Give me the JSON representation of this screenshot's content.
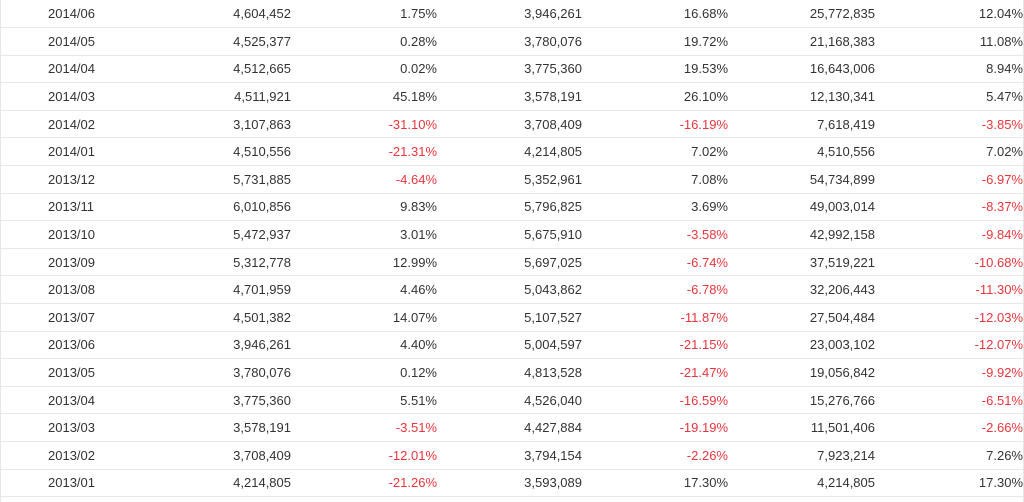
{
  "colors": {
    "negative": "#e8363c",
    "text": "#333333",
    "divider": "#e8e8e8"
  },
  "rows": [
    {
      "date": "2014/06",
      "v1": "4,604,452",
      "p1": "1.75%",
      "v2": "3,946,261",
      "p2": "16.68%",
      "v3": "25,772,835",
      "p3": "12.04%"
    },
    {
      "date": "2014/05",
      "v1": "4,525,377",
      "p1": "0.28%",
      "v2": "3,780,076",
      "p2": "19.72%",
      "v3": "21,168,383",
      "p3": "11.08%"
    },
    {
      "date": "2014/04",
      "v1": "4,512,665",
      "p1": "0.02%",
      "v2": "3,775,360",
      "p2": "19.53%",
      "v3": "16,643,006",
      "p3": "8.94%"
    },
    {
      "date": "2014/03",
      "v1": "4,511,921",
      "p1": "45.18%",
      "v2": "3,578,191",
      "p2": "26.10%",
      "v3": "12,130,341",
      "p3": "5.47%"
    },
    {
      "date": "2014/02",
      "v1": "3,107,863",
      "p1": "-31.10%",
      "v2": "3,708,409",
      "p2": "-16.19%",
      "v3": "7,618,419",
      "p3": "-3.85%"
    },
    {
      "date": "2014/01",
      "v1": "4,510,556",
      "p1": "-21.31%",
      "v2": "4,214,805",
      "p2": "7.02%",
      "v3": "4,510,556",
      "p3": "7.02%"
    },
    {
      "date": "2013/12",
      "v1": "5,731,885",
      "p1": "-4.64%",
      "v2": "5,352,961",
      "p2": "7.08%",
      "v3": "54,734,899",
      "p3": "-6.97%"
    },
    {
      "date": "2013/11",
      "v1": "6,010,856",
      "p1": "9.83%",
      "v2": "5,796,825",
      "p2": "3.69%",
      "v3": "49,003,014",
      "p3": "-8.37%"
    },
    {
      "date": "2013/10",
      "v1": "5,472,937",
      "p1": "3.01%",
      "v2": "5,675,910",
      "p2": "-3.58%",
      "v3": "42,992,158",
      "p3": "-9.84%"
    },
    {
      "date": "2013/09",
      "v1": "5,312,778",
      "p1": "12.99%",
      "v2": "5,697,025",
      "p2": "-6.74%",
      "v3": "37,519,221",
      "p3": "-10.68%"
    },
    {
      "date": "2013/08",
      "v1": "4,701,959",
      "p1": "4.46%",
      "v2": "5,043,862",
      "p2": "-6.78%",
      "v3": "32,206,443",
      "p3": "-11.30%"
    },
    {
      "date": "2013/07",
      "v1": "4,501,382",
      "p1": "14.07%",
      "v2": "5,107,527",
      "p2": "-11.87%",
      "v3": "27,504,484",
      "p3": "-12.03%"
    },
    {
      "date": "2013/06",
      "v1": "3,946,261",
      "p1": "4.40%",
      "v2": "5,004,597",
      "p2": "-21.15%",
      "v3": "23,003,102",
      "p3": "-12.07%"
    },
    {
      "date": "2013/05",
      "v1": "3,780,076",
      "p1": "0.12%",
      "v2": "4,813,528",
      "p2": "-21.47%",
      "v3": "19,056,842",
      "p3": "-9.92%"
    },
    {
      "date": "2013/04",
      "v1": "3,775,360",
      "p1": "5.51%",
      "v2": "4,526,040",
      "p2": "-16.59%",
      "v3": "15,276,766",
      "p3": "-6.51%"
    },
    {
      "date": "2013/03",
      "v1": "3,578,191",
      "p1": "-3.51%",
      "v2": "4,427,884",
      "p2": "-19.19%",
      "v3": "11,501,406",
      "p3": "-2.66%"
    },
    {
      "date": "2013/02",
      "v1": "3,708,409",
      "p1": "-12.01%",
      "v2": "3,794,154",
      "p2": "-2.26%",
      "v3": "7,923,214",
      "p3": "7.26%"
    },
    {
      "date": "2013/01",
      "v1": "4,214,805",
      "p1": "-21.26%",
      "v2": "3,593,089",
      "p2": "17.30%",
      "v3": "4,214,805",
      "p3": "17.30%"
    }
  ]
}
